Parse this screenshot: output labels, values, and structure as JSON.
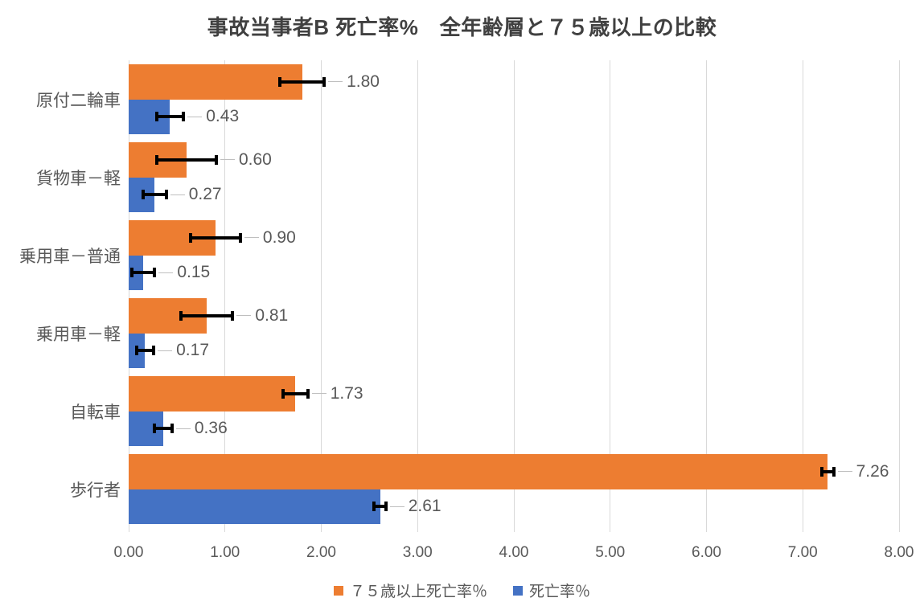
{
  "title": "事故当事者B 死亡率%　全年齢層と７５歳以上の比較",
  "colors": {
    "series_senior": "#ED7D31",
    "series_overall": "#4472C4",
    "gridline": "#d9d9d9",
    "error_bar": "#000000",
    "leader_line": "#bfbfbf",
    "text": "#595959",
    "title_text": "#404040"
  },
  "chart_data": {
    "type": "bar",
    "orientation": "horizontal",
    "title": "事故当事者B 死亡率%　全年齢層と７５歳以上の比較",
    "categories": [
      "原付二輪車",
      "貨物車－軽",
      "乗用車－普通",
      "乗用車－軽",
      "自転車",
      "歩行者"
    ],
    "series": [
      {
        "name": "７５歳以上死亡率％",
        "color": "#ED7D31",
        "values": [
          1.8,
          0.6,
          0.9,
          0.81,
          1.73,
          7.26
        ],
        "labels": [
          "1.80",
          "0.60",
          "0.90",
          "0.81",
          "1.73",
          "7.26"
        ],
        "errors": [
          0.23,
          0.31,
          0.26,
          0.27,
          0.13,
          0.06
        ]
      },
      {
        "name": "死亡率％",
        "color": "#4472C4",
        "values": [
          0.43,
          0.27,
          0.15,
          0.17,
          0.36,
          2.61
        ],
        "labels": [
          "0.43",
          "0.27",
          "0.15",
          "0.17",
          "0.36",
          "2.61"
        ],
        "errors": [
          0.14,
          0.12,
          0.12,
          0.09,
          0.09,
          0.06
        ]
      }
    ],
    "xlim": [
      0,
      8
    ],
    "x_ticks": [
      "0.00",
      "1.00",
      "2.00",
      "3.00",
      "4.00",
      "5.00",
      "6.00",
      "7.00",
      "8.00"
    ],
    "grid": true,
    "error_bars": true,
    "data_labels": true,
    "legend_position": "bottom"
  }
}
